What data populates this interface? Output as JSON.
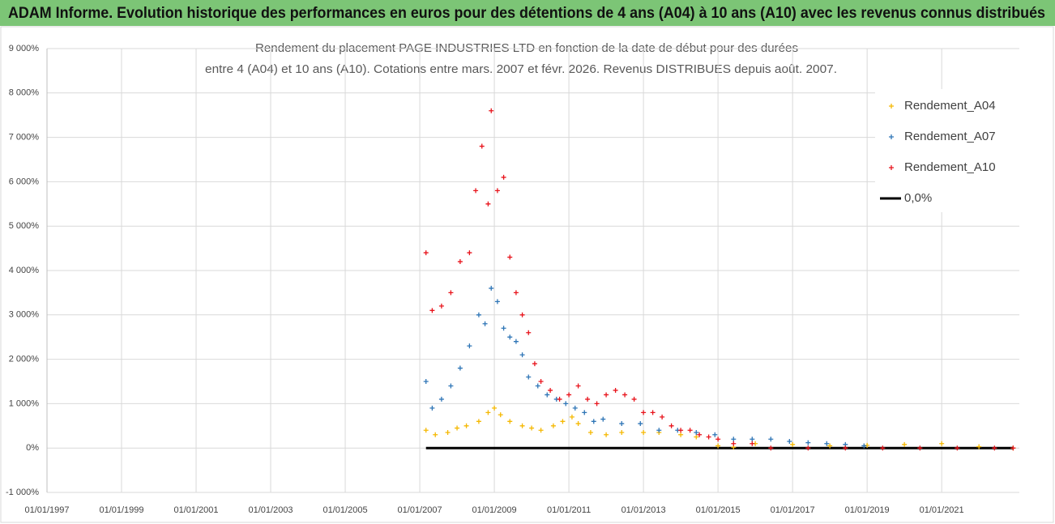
{
  "banner": "ADAM Informe. Evolution historique des performances en euros pour des détentions de 4 ans (A04) à 10 ans (A10) avec les revenus connus distribués",
  "chart_data": {
    "type": "scatter",
    "title": [
      "Rendement du placement PAGE INDUSTRIES LTD en fonction de la date de début pour des durées",
      "entre 4 (A04) et 10 ans (A10). Cotations entre mars. 2007 et févr. 2026. Revenus DISTRIBUES depuis août. 2007."
    ],
    "xlim": [
      "01/01/1997",
      "01/02/2023"
    ],
    "xticks": [
      "01/01/1997",
      "01/01/1999",
      "01/01/2001",
      "01/01/2003",
      "01/01/2005",
      "01/01/2007",
      "01/01/2009",
      "01/01/2011",
      "01/01/2013",
      "01/01/2015",
      "01/01/2017",
      "01/01/2019",
      "01/01/2021"
    ],
    "ylim": [
      -1000,
      9000
    ],
    "yticks": [
      {
        "value": -1000,
        "label": "-1 000%"
      },
      {
        "value": 0,
        "label": "0%"
      },
      {
        "value": 1000,
        "label": "1 000%"
      },
      {
        "value": 2000,
        "label": "2 000%"
      },
      {
        "value": 3000,
        "label": "3 000%"
      },
      {
        "value": 4000,
        "label": "4 000%"
      },
      {
        "value": 5000,
        "label": "5 000%"
      },
      {
        "value": 6000,
        "label": "6 000%"
      },
      {
        "value": 7000,
        "label": "7 000%"
      },
      {
        "value": 8000,
        "label": "8 000%"
      },
      {
        "value": 9000,
        "label": "9 000%"
      }
    ],
    "grid": true,
    "legend": "upper right",
    "series": [
      {
        "name": "Rendement_A04",
        "color": "#f5b800",
        "marker": "+",
        "x": [
          "01/03/2007",
          "01/06/2007",
          "01/10/2007",
          "01/01/2008",
          "01/04/2008",
          "01/08/2008",
          "01/11/2008",
          "01/01/2009",
          "01/03/2009",
          "01/06/2009",
          "01/10/2009",
          "01/01/2010",
          "01/04/2010",
          "01/08/2010",
          "01/11/2010",
          "01/02/2011",
          "01/04/2011",
          "01/08/2011",
          "01/01/2012",
          "01/06/2012",
          "01/01/2013",
          "01/06/2013",
          "01/01/2014",
          "01/06/2014",
          "01/01/2015",
          "01/06/2015",
          "01/01/2016",
          "01/01/2017",
          "01/01/2018",
          "01/01/2019",
          "01/01/2020",
          "01/01/2021",
          "01/01/2022",
          "01/12/2022"
        ],
        "values": [
          400,
          300,
          350,
          450,
          500,
          600,
          800,
          900,
          750,
          600,
          500,
          450,
          400,
          500,
          600,
          700,
          550,
          350,
          300,
          350,
          350,
          350,
          300,
          250,
          50,
          20,
          100,
          80,
          50,
          60,
          80,
          100,
          30,
          0
        ]
      },
      {
        "name": "Rendement_A07",
        "color": "#2e75b6",
        "marker": "+",
        "x": [
          "01/03/2007",
          "01/05/2007",
          "01/08/2007",
          "01/11/2007",
          "01/02/2008",
          "01/05/2008",
          "01/08/2008",
          "01/10/2008",
          "01/12/2008",
          "01/02/2009",
          "01/04/2009",
          "01/06/2009",
          "01/08/2009",
          "01/10/2009",
          "01/12/2009",
          "01/03/2010",
          "01/06/2010",
          "01/09/2010",
          "01/12/2010",
          "01/03/2011",
          "01/06/2011",
          "01/09/2011",
          "01/12/2011",
          "01/06/2012",
          "01/12/2012",
          "01/06/2013",
          "01/12/2013",
          "01/06/2014",
          "01/12/2014",
          "01/06/2015",
          "01/12/2015",
          "01/06/2016",
          "01/12/2016",
          "01/06/2017",
          "01/12/2017",
          "01/06/2018",
          "01/12/2018"
        ],
        "values": [
          1500,
          900,
          1100,
          1400,
          1800,
          2300,
          3000,
          2800,
          3600,
          3300,
          2700,
          2500,
          2400,
          2100,
          1600,
          1400,
          1200,
          1100,
          1000,
          900,
          800,
          600,
          650,
          550,
          550,
          400,
          400,
          350,
          300,
          200,
          200,
          200,
          150,
          120,
          100,
          80,
          50
        ]
      },
      {
        "name": "Rendement_A10",
        "color": "#e8131b",
        "marker": "+",
        "x": [
          "01/03/2007",
          "01/05/2007",
          "01/08/2007",
          "01/11/2007",
          "01/02/2008",
          "01/05/2008",
          "01/07/2008",
          "01/09/2008",
          "01/11/2008",
          "01/12/2008",
          "01/02/2009",
          "01/04/2009",
          "01/06/2009",
          "01/08/2009",
          "01/10/2009",
          "01/12/2009",
          "01/02/2010",
          "01/04/2010",
          "01/07/2010",
          "01/10/2010",
          "01/01/2011",
          "01/04/2011",
          "01/07/2011",
          "01/10/2011",
          "01/01/2012",
          "01/04/2012",
          "01/07/2012",
          "01/10/2012",
          "01/01/2013",
          "01/04/2013",
          "01/07/2013",
          "01/10/2013",
          "01/01/2014",
          "01/04/2014",
          "01/07/2014",
          "01/10/2014",
          "01/01/2015",
          "01/06/2015",
          "01/12/2015",
          "01/06/2016",
          "01/06/2017",
          "01/06/2018",
          "01/06/2019",
          "01/06/2020",
          "01/06/2021",
          "01/06/2022",
          "01/12/2022"
        ],
        "values": [
          4400,
          3100,
          3200,
          3500,
          4200,
          4400,
          5800,
          6800,
          5500,
          7600,
          5800,
          6100,
          4300,
          3500,
          3000,
          2600,
          1900,
          1500,
          1300,
          1100,
          1200,
          1400,
          1100,
          1000,
          1200,
          1300,
          1200,
          1100,
          800,
          800,
          700,
          500,
          400,
          400,
          300,
          250,
          200,
          100,
          100,
          0,
          0,
          0,
          0,
          0,
          0,
          0,
          0
        ]
      },
      {
        "name": "0,0%",
        "color": "#000000",
        "marker": "line",
        "x": [
          "01/03/2007",
          "01/12/2022"
        ],
        "values": [
          0,
          0
        ]
      }
    ]
  }
}
